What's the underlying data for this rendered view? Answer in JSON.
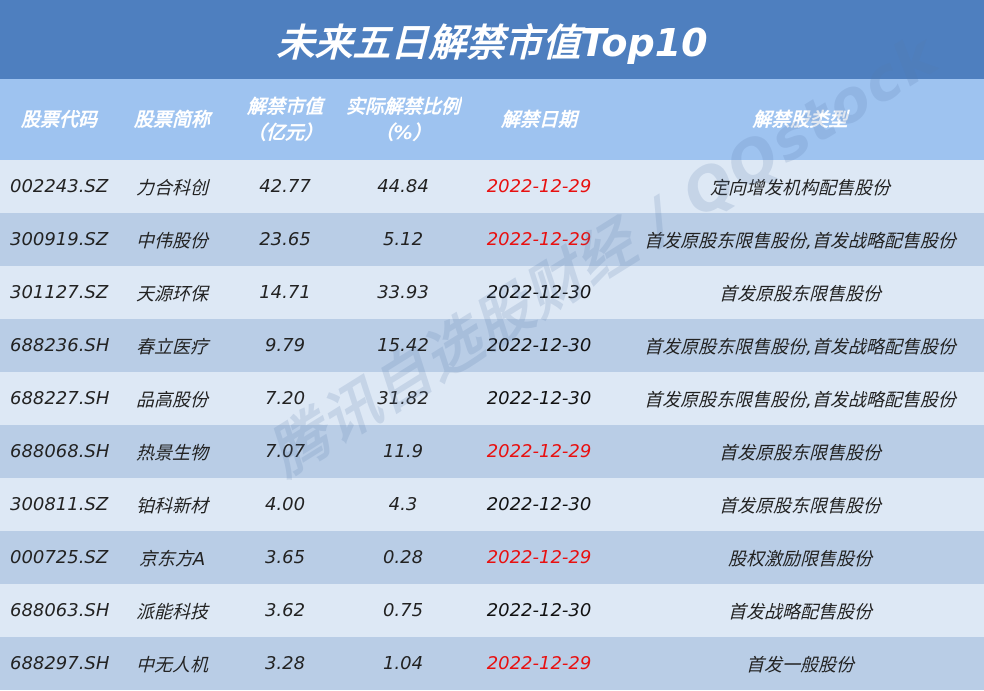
{
  "title": "未来五日解禁市值Top10",
  "headers": {
    "code": "股票代码",
    "name": "股票简称",
    "value_line1": "解禁市值",
    "value_line2": "（亿元）",
    "ratio_line1": "实际解禁比例",
    "ratio_line2": "（%）",
    "date": "解禁日期",
    "type": "解禁股类型"
  },
  "colors": {
    "title_bg": "#4e7fbf",
    "header_bg": "#9ec3f0",
    "row_light": "#dde8f5",
    "row_dark": "#b9cde6",
    "date_highlight": "#e81010"
  },
  "rows": [
    {
      "code": "002243.SZ",
      "name": "力合科创",
      "value": "42.77",
      "ratio": "44.84",
      "date": "2022-12-29",
      "date_red": true,
      "type": "定向增发机构配售股份"
    },
    {
      "code": "300919.SZ",
      "name": "中伟股份",
      "value": "23.65",
      "ratio": "5.12",
      "date": "2022-12-29",
      "date_red": true,
      "type": "首发原股东限售股份,首发战略配售股份"
    },
    {
      "code": "301127.SZ",
      "name": "天源环保",
      "value": "14.71",
      "ratio": "33.93",
      "date": "2022-12-30",
      "date_red": false,
      "type": "首发原股东限售股份"
    },
    {
      "code": "688236.SH",
      "name": "春立医疗",
      "value": "9.79",
      "ratio": "15.42",
      "date": "2022-12-30",
      "date_red": false,
      "type": "首发原股东限售股份,首发战略配售股份"
    },
    {
      "code": "688227.SH",
      "name": "品高股份",
      "value": "7.20",
      "ratio": "31.82",
      "date": "2022-12-30",
      "date_red": false,
      "type": "首发原股东限售股份,首发战略配售股份"
    },
    {
      "code": "688068.SH",
      "name": "热景生物",
      "value": "7.07",
      "ratio": "11.9",
      "date": "2022-12-29",
      "date_red": true,
      "type": "首发原股东限售股份"
    },
    {
      "code": "300811.SZ",
      "name": "铂科新材",
      "value": "4.00",
      "ratio": "4.3",
      "date": "2022-12-30",
      "date_red": false,
      "type": "首发原股东限售股份"
    },
    {
      "code": "000725.SZ",
      "name": "京东方A",
      "value": "3.65",
      "ratio": "0.28",
      "date": "2022-12-29",
      "date_red": true,
      "type": "股权激励限售股份"
    },
    {
      "code": "688063.SH",
      "name": "派能科技",
      "value": "3.62",
      "ratio": "0.75",
      "date": "2022-12-30",
      "date_red": false,
      "type": "首发战略配售股份"
    },
    {
      "code": "688297.SH",
      "name": "中无人机",
      "value": "3.28",
      "ratio": "1.04",
      "date": "2022-12-29",
      "date_red": true,
      "type": "首发一般股份"
    }
  ],
  "watermark": "腾讯自选股财经 / QQstock"
}
